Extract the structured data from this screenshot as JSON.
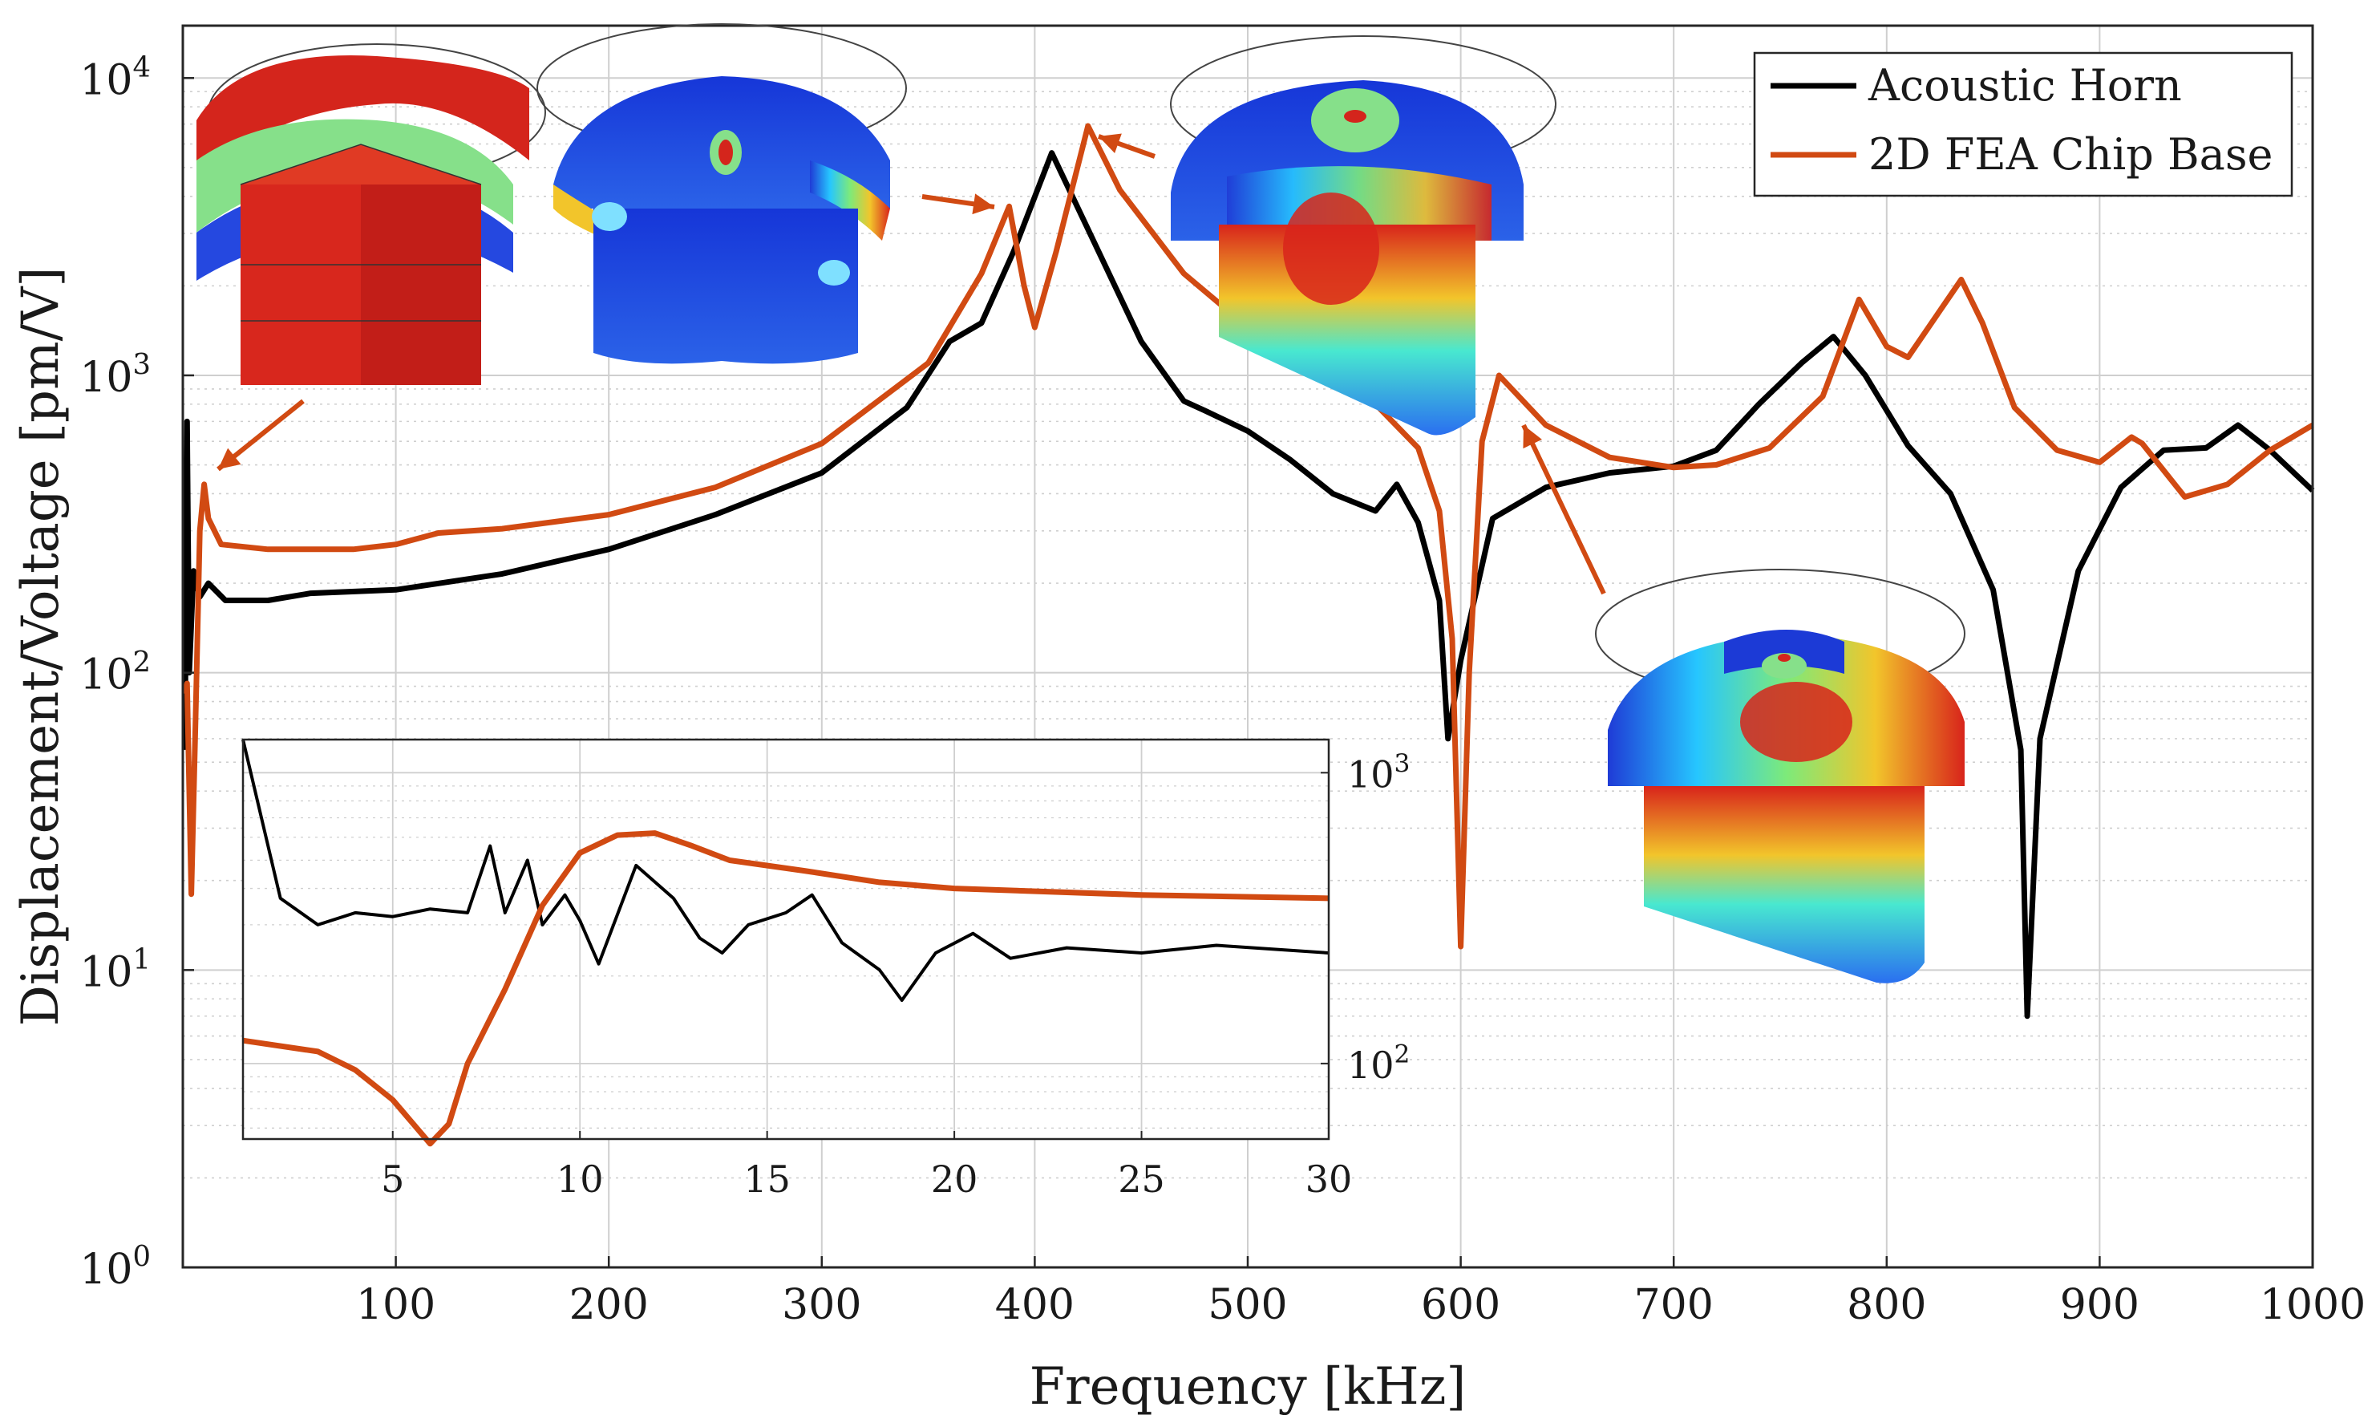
{
  "colors": {
    "horn": "#000000",
    "fea": "#d14a12",
    "grid": "#cfcfcf",
    "minorgrid": "#cfcfcf"
  },
  "chart_data": {
    "type": "line",
    "xlabel": "Frequency [kHz]",
    "ylabel": "Displacement/Voltage [pm/V]",
    "yscale": "log",
    "xlim": [
      0,
      1000
    ],
    "ylim": [
      1,
      15000
    ],
    "x_ticks": [
      {
        "v": 100,
        "t": "100"
      },
      {
        "v": 200,
        "t": "200"
      },
      {
        "v": 300,
        "t": "300"
      },
      {
        "v": 400,
        "t": "400"
      },
      {
        "v": 500,
        "t": "500"
      },
      {
        "v": 600,
        "t": "600"
      },
      {
        "v": 700,
        "t": "700"
      },
      {
        "v": 800,
        "t": "800"
      },
      {
        "v": 900,
        "t": "900"
      },
      {
        "v": 1000,
        "t": "1000"
      }
    ],
    "y_ticks": [
      {
        "v": 1,
        "b": "10",
        "e": "0"
      },
      {
        "v": 10,
        "b": "10",
        "e": "1"
      },
      {
        "v": 100,
        "b": "10",
        "e": "2"
      },
      {
        "v": 1000,
        "b": "10",
        "e": "3"
      },
      {
        "v": 10000,
        "b": "10",
        "e": "4"
      }
    ],
    "legend": {
      "location": "top-right",
      "entries": [
        "Acoustic Horn",
        "2D FEA Chip Base"
      ]
    },
    "series": [
      {
        "name": "Acoustic Horn",
        "points": [
          [
            1,
            55
          ],
          [
            2,
            700
          ],
          [
            3,
            100
          ],
          [
            5,
            220
          ],
          [
            8,
            180
          ],
          [
            12,
            200
          ],
          [
            20,
            175
          ],
          [
            40,
            175
          ],
          [
            60,
            185
          ],
          [
            100,
            190
          ],
          [
            150,
            215
          ],
          [
            200,
            260
          ],
          [
            250,
            340
          ],
          [
            300,
            470
          ],
          [
            340,
            780
          ],
          [
            360,
            1300
          ],
          [
            375,
            1500
          ],
          [
            390,
            2600
          ],
          [
            408,
            5600
          ],
          [
            425,
            3100
          ],
          [
            450,
            1300
          ],
          [
            470,
            820
          ],
          [
            480,
            760
          ],
          [
            500,
            650
          ],
          [
            520,
            520
          ],
          [
            540,
            400
          ],
          [
            560,
            350
          ],
          [
            570,
            430
          ],
          [
            580,
            320
          ],
          [
            590,
            175
          ],
          [
            594,
            60
          ],
          [
            600,
            110
          ],
          [
            615,
            330
          ],
          [
            640,
            420
          ],
          [
            670,
            470
          ],
          [
            700,
            495
          ],
          [
            720,
            560
          ],
          [
            740,
            800
          ],
          [
            760,
            1100
          ],
          [
            775,
            1350
          ],
          [
            790,
            1000
          ],
          [
            810,
            580
          ],
          [
            830,
            400
          ],
          [
            850,
            190
          ],
          [
            863,
            55
          ],
          [
            866,
            7
          ],
          [
            872,
            60
          ],
          [
            890,
            220
          ],
          [
            910,
            420
          ],
          [
            930,
            560
          ],
          [
            950,
            570
          ],
          [
            965,
            680
          ],
          [
            980,
            560
          ],
          [
            1000,
            410
          ]
        ]
      },
      {
        "name": "2D FEA Chip Base",
        "points": [
          [
            1,
            85
          ],
          [
            2,
            92
          ],
          [
            4,
            18
          ],
          [
            6,
            70
          ],
          [
            8,
            300
          ],
          [
            10,
            430
          ],
          [
            12,
            330
          ],
          [
            18,
            270
          ],
          [
            40,
            260
          ],
          [
            80,
            260
          ],
          [
            100,
            270
          ],
          [
            120,
            295
          ],
          [
            150,
            305
          ],
          [
            200,
            340
          ],
          [
            250,
            420
          ],
          [
            300,
            590
          ],
          [
            350,
            1100
          ],
          [
            375,
            2200
          ],
          [
            388,
            3700
          ],
          [
            395,
            2000
          ],
          [
            400,
            1450
          ],
          [
            410,
            2600
          ],
          [
            425,
            6900
          ],
          [
            440,
            4200
          ],
          [
            470,
            2200
          ],
          [
            500,
            1450
          ],
          [
            530,
            1050
          ],
          [
            560,
            800
          ],
          [
            580,
            570
          ],
          [
            590,
            350
          ],
          [
            596,
            130
          ],
          [
            600,
            12
          ],
          [
            604,
            100
          ],
          [
            610,
            600
          ],
          [
            618,
            1000
          ],
          [
            640,
            680
          ],
          [
            670,
            530
          ],
          [
            700,
            490
          ],
          [
            720,
            500
          ],
          [
            745,
            570
          ],
          [
            770,
            850
          ],
          [
            787,
            1800
          ],
          [
            800,
            1250
          ],
          [
            810,
            1150
          ],
          [
            825,
            1650
          ],
          [
            835,
            2100
          ],
          [
            845,
            1500
          ],
          [
            860,
            780
          ],
          [
            880,
            560
          ],
          [
            900,
            510
          ],
          [
            915,
            620
          ],
          [
            920,
            590
          ],
          [
            940,
            390
          ],
          [
            960,
            430
          ],
          [
            980,
            560
          ],
          [
            1000,
            680
          ]
        ]
      }
    ],
    "inset": {
      "xlim": [
        1,
        30
      ],
      "x_ticks": [
        {
          "v": 5,
          "t": "5"
        },
        {
          "v": 10,
          "t": "10"
        },
        {
          "v": 15,
          "t": "15"
        },
        {
          "v": 20,
          "t": "20"
        },
        {
          "v": 25,
          "t": "25"
        },
        {
          "v": 30,
          "t": "30"
        }
      ],
      "ylim": [
        55,
        1300
      ],
      "y_ticks": [
        {
          "v": 100,
          "b": "10",
          "e": "2"
        },
        {
          "v": 1000,
          "b": "10",
          "e": "3"
        }
      ],
      "series": [
        {
          "name": "Acoustic Horn",
          "points": [
            [
              1,
              1300
            ],
            [
              2,
              370
            ],
            [
              3,
              300
            ],
            [
              4,
              330
            ],
            [
              5,
              320
            ],
            [
              6,
              340
            ],
            [
              7,
              330
            ],
            [
              7.6,
              560
            ],
            [
              8,
              330
            ],
            [
              8.6,
              500
            ],
            [
              9,
              300
            ],
            [
              9.6,
              380
            ],
            [
              10,
              310
            ],
            [
              10.5,
              220
            ],
            [
              11.5,
              480
            ],
            [
              12.5,
              370
            ],
            [
              13.2,
              270
            ],
            [
              13.8,
              240
            ],
            [
              14.5,
              300
            ],
            [
              15.5,
              330
            ],
            [
              16.2,
              380
            ],
            [
              17,
              260
            ],
            [
              18,
              210
            ],
            [
              18.6,
              165
            ],
            [
              19.5,
              240
            ],
            [
              20.5,
              280
            ],
            [
              21.5,
              230
            ],
            [
              23,
              250
            ],
            [
              25,
              240
            ],
            [
              27,
              255
            ],
            [
              30,
              240
            ]
          ]
        },
        {
          "name": "2D FEA Chip Base",
          "points": [
            [
              1,
              120
            ],
            [
              3,
              110
            ],
            [
              4,
              95
            ],
            [
              5,
              75
            ],
            [
              6,
              53
            ],
            [
              6.5,
              62
            ],
            [
              7,
              100
            ],
            [
              8,
              180
            ],
            [
              9,
              350
            ],
            [
              10,
              530
            ],
            [
              11,
              610
            ],
            [
              12,
              620
            ],
            [
              13,
              560
            ],
            [
              14,
              500
            ],
            [
              16,
              460
            ],
            [
              18,
              420
            ],
            [
              20,
              400
            ],
            [
              25,
              380
            ],
            [
              30,
              370
            ]
          ]
        }
      ]
    }
  }
}
